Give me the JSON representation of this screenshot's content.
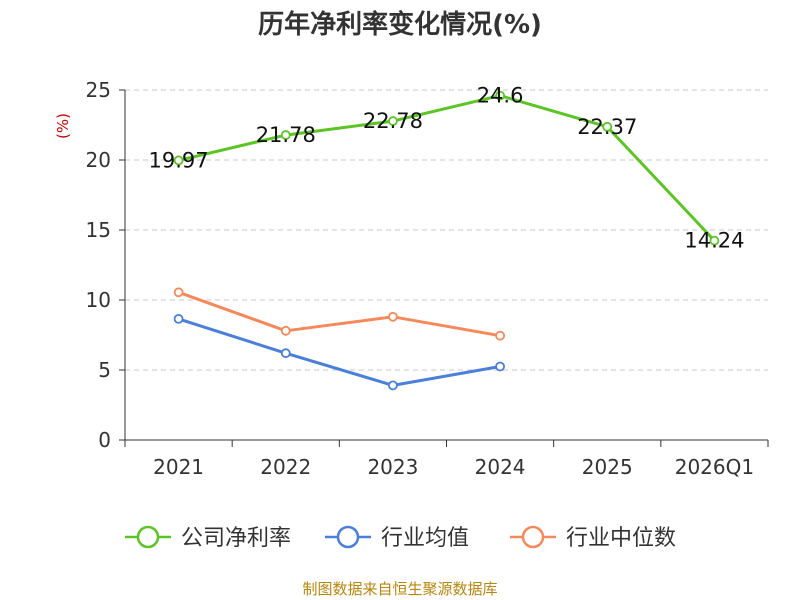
{
  "chart_data": {
    "type": "line",
    "title": "历年净利率变化情况(%)",
    "ylabel": "(%)",
    "xlabel": "",
    "categories": [
      "2021",
      "2022",
      "2023",
      "2024",
      "2025",
      "2026Q1"
    ],
    "ylim": [
      0,
      25
    ],
    "yticks": [
      0,
      5,
      10,
      15,
      20,
      25
    ],
    "grid": true,
    "legend_position": "bottom",
    "series": [
      {
        "name": "公司净利率",
        "color": "#5cc424",
        "values": [
          19.97,
          21.78,
          22.78,
          24.6,
          22.37,
          14.24
        ],
        "labels": [
          "19.97",
          "21.78",
          "22.78",
          "24.6",
          "22.37",
          "14.24"
        ]
      },
      {
        "name": "行业均值",
        "color": "#4a7fdc",
        "values": [
          8.65,
          6.2,
          3.9,
          5.25,
          null,
          null
        ]
      },
      {
        "name": "行业中位数",
        "color": "#f5895a",
        "values": [
          10.55,
          7.8,
          8.8,
          7.45,
          null,
          null
        ]
      }
    ]
  },
  "source": "制图数据来自恒生聚源数据库"
}
